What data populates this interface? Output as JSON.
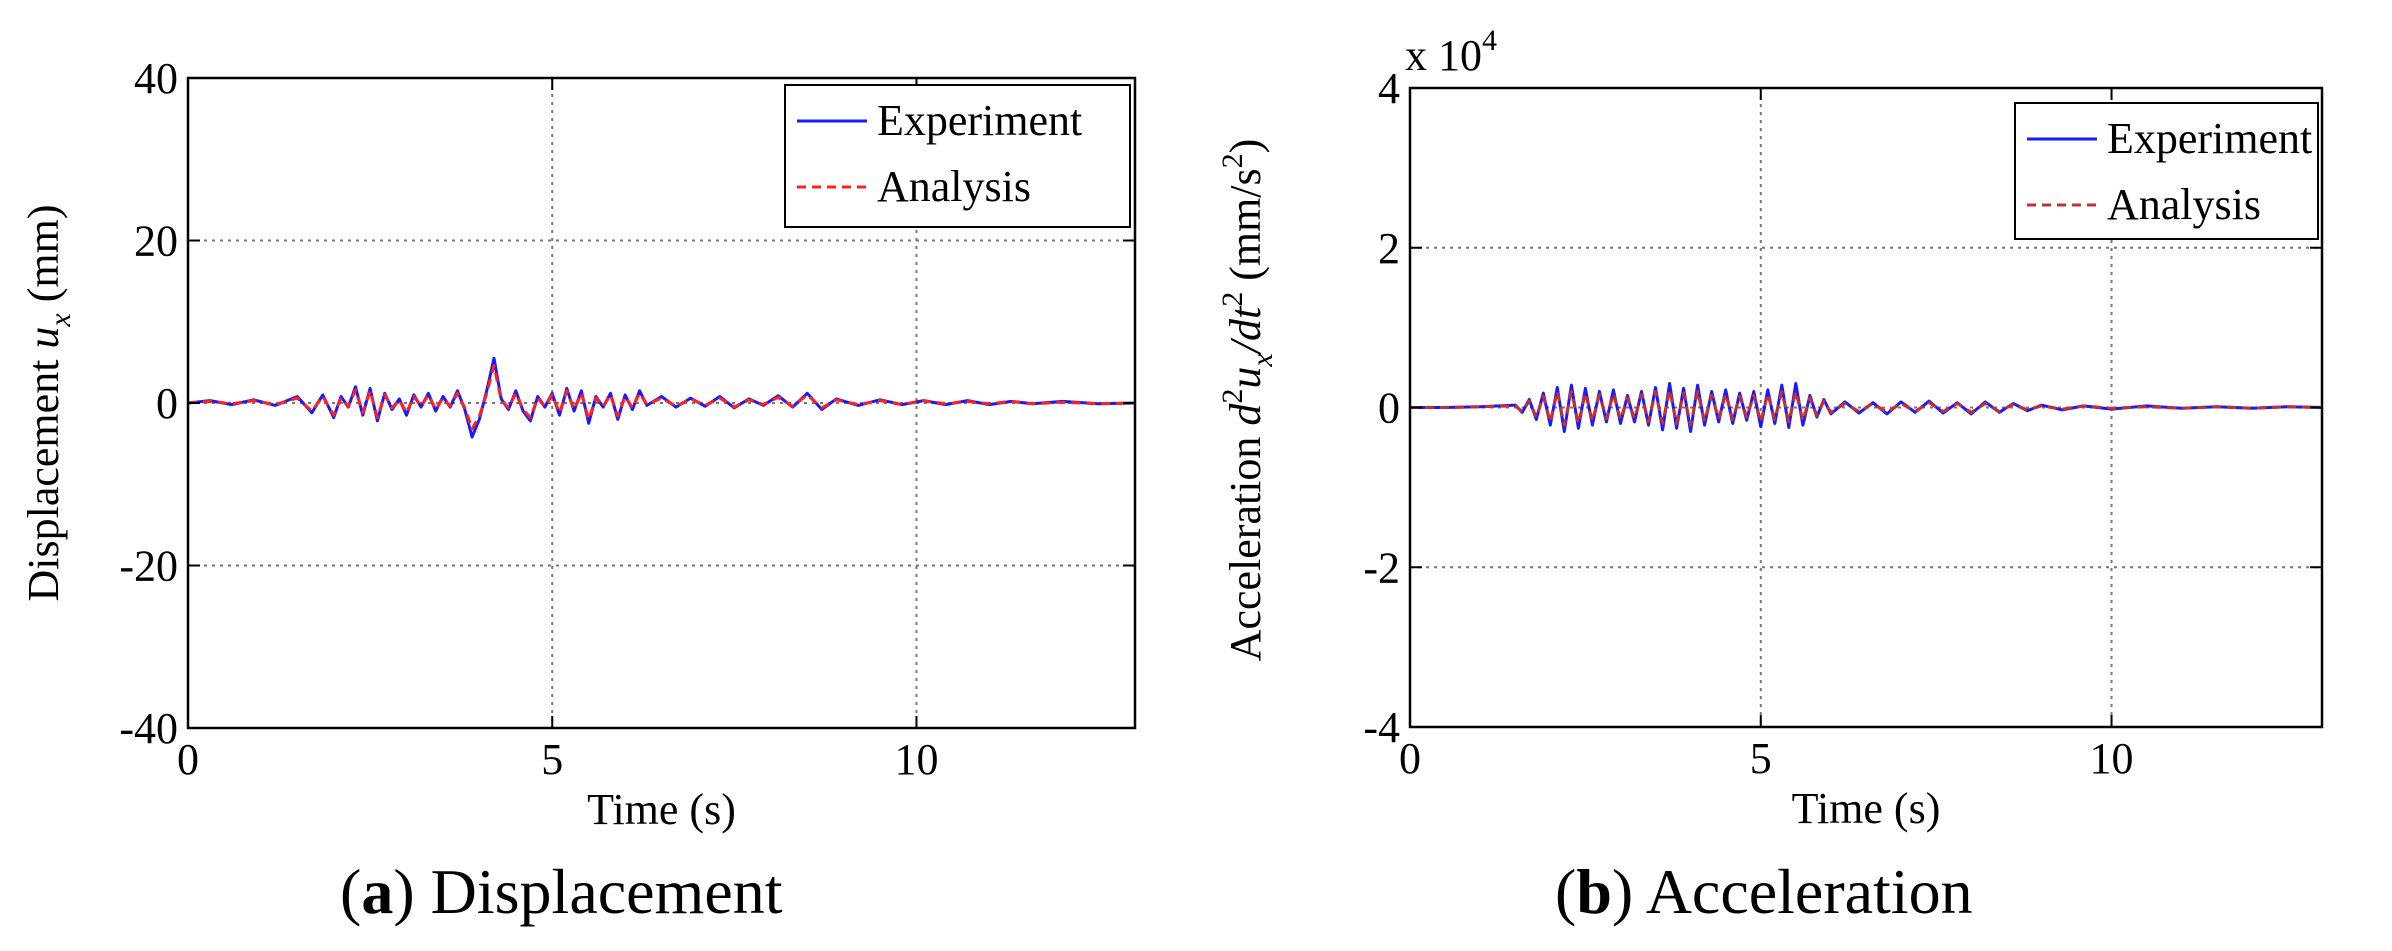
{
  "captions": [
    {
      "letter": "a",
      "text": "Displacement"
    },
    {
      "letter": "b",
      "text": "Acceleration"
    }
  ],
  "chart_data": [
    {
      "type": "line",
      "xlabel": "Time (s)",
      "ylabel_prefix": "Displacement ",
      "ylabel_var": "u",
      "ylabel_sub": "x",
      "ylabel_unit": " (mm)",
      "xlim": [
        0,
        13
      ],
      "ylim": [
        -40,
        40
      ],
      "xticks": [
        0,
        5,
        10
      ],
      "yticks": [
        -40,
        -20,
        0,
        20,
        40
      ],
      "grid": true,
      "legend": "top-right",
      "series": [
        {
          "name": "Experiment",
          "color": "#1a1aff",
          "style": "solid",
          "x": [
            0,
            0.3,
            0.6,
            0.9,
            1.2,
            1.5,
            1.7,
            1.85,
            2.0,
            2.1,
            2.2,
            2.3,
            2.4,
            2.5,
            2.6,
            2.7,
            2.8,
            2.9,
            3.0,
            3.1,
            3.2,
            3.3,
            3.4,
            3.5,
            3.6,
            3.7,
            3.8,
            3.9,
            4.0,
            4.1,
            4.2,
            4.3,
            4.4,
            4.5,
            4.6,
            4.7,
            4.8,
            4.9,
            5.0,
            5.1,
            5.2,
            5.3,
            5.4,
            5.5,
            5.6,
            5.7,
            5.8,
            5.9,
            6.0,
            6.1,
            6.2,
            6.3,
            6.5,
            6.7,
            6.9,
            7.1,
            7.3,
            7.5,
            7.7,
            7.9,
            8.1,
            8.3,
            8.5,
            8.7,
            8.9,
            9.2,
            9.5,
            9.8,
            10.1,
            10.4,
            10.7,
            11.0,
            11.3,
            11.6,
            12.0,
            12.5,
            13.0
          ],
          "y": [
            0,
            0.3,
            -0.2,
            0.4,
            -0.3,
            0.8,
            -1.2,
            1.0,
            -1.8,
            0.8,
            -0.5,
            2.0,
            -1.5,
            1.8,
            -2.2,
            1.2,
            -0.8,
            0.5,
            -1.5,
            1.0,
            -0.5,
            1.2,
            -1.0,
            0.8,
            -0.5,
            1.5,
            -0.8,
            -4.2,
            -2.0,
            1.5,
            5.5,
            0.5,
            -0.8,
            1.5,
            -1.0,
            -2.2,
            0.8,
            -0.5,
            1.2,
            -1.5,
            1.8,
            -1.0,
            1.5,
            -2.5,
            0.8,
            -0.5,
            1.2,
            -2.0,
            1.0,
            -0.8,
            1.5,
            -0.3,
            0.8,
            -0.5,
            0.6,
            -0.4,
            0.8,
            -0.6,
            0.5,
            -0.3,
            0.9,
            -0.5,
            1.2,
            -0.8,
            0.5,
            -0.3,
            0.4,
            -0.2,
            0.3,
            -0.2,
            0.3,
            -0.2,
            0.2,
            -0.1,
            0.2,
            -0.1,
            0
          ]
        },
        {
          "name": "Analysis",
          "color": "#ff2020",
          "style": "dashed",
          "x": [
            0,
            0.3,
            0.6,
            0.9,
            1.2,
            1.5,
            1.7,
            1.85,
            2.0,
            2.1,
            2.2,
            2.3,
            2.4,
            2.5,
            2.6,
            2.7,
            2.8,
            2.9,
            3.0,
            3.1,
            3.2,
            3.3,
            3.4,
            3.5,
            3.6,
            3.7,
            3.8,
            3.9,
            4.0,
            4.1,
            4.2,
            4.3,
            4.4,
            4.5,
            4.6,
            4.7,
            4.8,
            4.9,
            5.0,
            5.1,
            5.2,
            5.3,
            5.4,
            5.5,
            5.6,
            5.7,
            5.8,
            5.9,
            6.0,
            6.1,
            6.2,
            6.3,
            6.5,
            6.7,
            6.9,
            7.1,
            7.3,
            7.5,
            7.7,
            7.9,
            8.1,
            8.3,
            8.5,
            8.7,
            8.9,
            9.2,
            9.5,
            9.8,
            10.1,
            10.4,
            10.7,
            11.0,
            11.3,
            11.6,
            12.0,
            12.5,
            13.0
          ],
          "y": [
            0,
            0.2,
            -0.1,
            0.3,
            -0.2,
            0.6,
            -1.0,
            0.8,
            -1.5,
            0.6,
            -0.4,
            1.6,
            -1.2,
            1.5,
            -1.8,
            1.0,
            -0.6,
            0.4,
            -1.2,
            0.8,
            -0.4,
            1.0,
            -0.8,
            0.6,
            -0.4,
            1.2,
            -0.6,
            -3.2,
            -1.6,
            1.2,
            4.6,
            0.4,
            -0.6,
            1.2,
            -0.8,
            -1.8,
            0.6,
            -0.4,
            1.0,
            -1.2,
            1.5,
            -0.8,
            1.2,
            -2.0,
            0.6,
            -0.4,
            1.0,
            -1.6,
            0.8,
            -0.6,
            1.2,
            -0.2,
            0.6,
            -0.4,
            0.5,
            -0.3,
            0.6,
            -0.5,
            0.4,
            -0.2,
            0.7,
            -0.4,
            1.0,
            -0.6,
            0.4,
            -0.2,
            0.3,
            -0.2,
            0.3,
            -0.1,
            0.2,
            -0.1,
            0.2,
            -0.1,
            0.1,
            -0.1,
            0
          ]
        }
      ]
    },
    {
      "type": "line",
      "xlabel": "Time (s)",
      "ylabel_prefix": "Acceleration ",
      "ylabel_var": "d",
      "ylabel_sup": "2",
      "ylabel_mid": "u",
      "ylabel_sub": "x",
      "ylabel_den": "/dt",
      "ylabel_den_sup": "2",
      "ylabel_unit": " (mm/s",
      "ylabel_unit_sup": "2",
      "ylabel_close": ")",
      "exponent_label": "x 10",
      "exponent_power": "4",
      "xlim": [
        0,
        13
      ],
      "ylim": [
        -4,
        4
      ],
      "xticks": [
        0,
        5,
        10
      ],
      "yticks": [
        -4,
        -2,
        0,
        2,
        4
      ],
      "grid": true,
      "legend": "top-right",
      "series": [
        {
          "name": "Experiment",
          "color": "#1a1aff",
          "style": "solid",
          "x": [
            0,
            0.5,
            1.0,
            1.5,
            1.6,
            1.7,
            1.8,
            1.9,
            2.0,
            2.1,
            2.2,
            2.3,
            2.4,
            2.5,
            2.6,
            2.7,
            2.8,
            2.9,
            3.0,
            3.1,
            3.2,
            3.3,
            3.4,
            3.5,
            3.6,
            3.7,
            3.8,
            3.9,
            4.0,
            4.1,
            4.2,
            4.3,
            4.4,
            4.5,
            4.6,
            4.7,
            4.8,
            4.9,
            5.0,
            5.1,
            5.2,
            5.3,
            5.4,
            5.5,
            5.6,
            5.7,
            5.8,
            5.9,
            6.0,
            6.2,
            6.4,
            6.6,
            6.8,
            7.0,
            7.2,
            7.4,
            7.6,
            7.8,
            8.0,
            8.2,
            8.4,
            8.6,
            8.8,
            9.0,
            9.3,
            9.6,
            10.0,
            10.5,
            11.0,
            11.5,
            12.0,
            12.5,
            13.0
          ],
          "y": [
            0,
            0,
            0.01,
            0.03,
            -0.06,
            0.1,
            -0.15,
            0.18,
            -0.22,
            0.25,
            -0.3,
            0.28,
            -0.26,
            0.24,
            -0.22,
            0.2,
            -0.18,
            0.22,
            -0.2,
            0.15,
            -0.18,
            0.2,
            -0.22,
            0.25,
            -0.28,
            0.3,
            -0.26,
            0.24,
            -0.3,
            0.28,
            -0.22,
            0.2,
            -0.18,
            0.22,
            -0.2,
            0.18,
            -0.16,
            0.2,
            -0.24,
            0.22,
            -0.2,
            0.28,
            -0.25,
            0.3,
            -0.22,
            0.15,
            -0.12,
            0.1,
            -0.08,
            0.07,
            -0.07,
            0.06,
            -0.08,
            0.07,
            -0.06,
            0.08,
            -0.07,
            0.06,
            -0.08,
            0.07,
            -0.06,
            0.05,
            -0.04,
            0.03,
            -0.03,
            0.02,
            -0.02,
            0.02,
            -0.01,
            0.01,
            -0.01,
            0.01,
            0
          ]
        },
        {
          "name": "Analysis",
          "color": "#c43030",
          "style": "dashed",
          "x": [
            0,
            0.5,
            1.0,
            1.5,
            1.6,
            1.7,
            1.8,
            1.9,
            2.0,
            2.1,
            2.2,
            2.3,
            2.4,
            2.5,
            2.6,
            2.7,
            2.8,
            2.9,
            3.0,
            3.1,
            3.2,
            3.3,
            3.4,
            3.5,
            3.6,
            3.7,
            3.8,
            3.9,
            4.0,
            4.1,
            4.2,
            4.3,
            4.4,
            4.5,
            4.6,
            4.7,
            4.8,
            4.9,
            5.0,
            5.1,
            5.2,
            5.3,
            5.4,
            5.5,
            5.6,
            5.7,
            5.8,
            5.9,
            6.0,
            6.2,
            6.4,
            6.6,
            6.8,
            7.0,
            7.2,
            7.4,
            7.6,
            7.8,
            8.0,
            8.2,
            8.4,
            8.6,
            8.8,
            9.0,
            9.3,
            9.6,
            10.0,
            10.5,
            11.0,
            11.5,
            12.0,
            12.5,
            13.0
          ],
          "y": [
            0,
            0,
            0.01,
            0.02,
            -0.05,
            0.08,
            -0.12,
            0.14,
            -0.18,
            0.2,
            -0.22,
            0.2,
            -0.2,
            0.18,
            -0.17,
            0.16,
            -0.14,
            0.17,
            -0.15,
            0.12,
            -0.14,
            0.16,
            -0.18,
            0.2,
            -0.2,
            0.22,
            -0.2,
            0.18,
            -0.22,
            0.2,
            -0.17,
            0.15,
            -0.14,
            0.17,
            -0.15,
            0.14,
            -0.12,
            0.15,
            -0.18,
            0.17,
            -0.15,
            0.2,
            -0.18,
            0.2,
            -0.16,
            0.12,
            -0.1,
            0.08,
            -0.06,
            0.05,
            -0.05,
            0.05,
            -0.06,
            0.05,
            -0.05,
            0.06,
            -0.05,
            0.05,
            -0.06,
            0.05,
            -0.05,
            0.04,
            -0.03,
            0.02,
            -0.02,
            0.02,
            -0.01,
            0.01,
            -0.01,
            0.01,
            -0.01,
            0.01,
            0
          ]
        }
      ]
    }
  ]
}
